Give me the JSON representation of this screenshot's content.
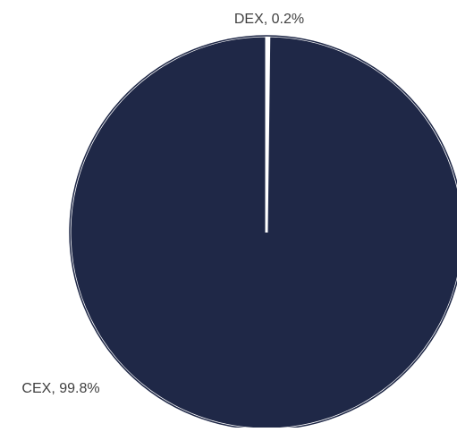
{
  "chart_data": {
    "type": "pie",
    "title": "",
    "slices": [
      {
        "name": "DEX",
        "value": 0.2,
        "label": "DEX, 0.2%"
      },
      {
        "name": "CEX",
        "value": 99.8,
        "label": "CEX, 99.8%"
      }
    ],
    "colors": {
      "fill": "#1f2847",
      "separator": "#ffffff"
    },
    "start_angle": "12 o'clock",
    "direction": "clockwise",
    "legend": "none"
  }
}
